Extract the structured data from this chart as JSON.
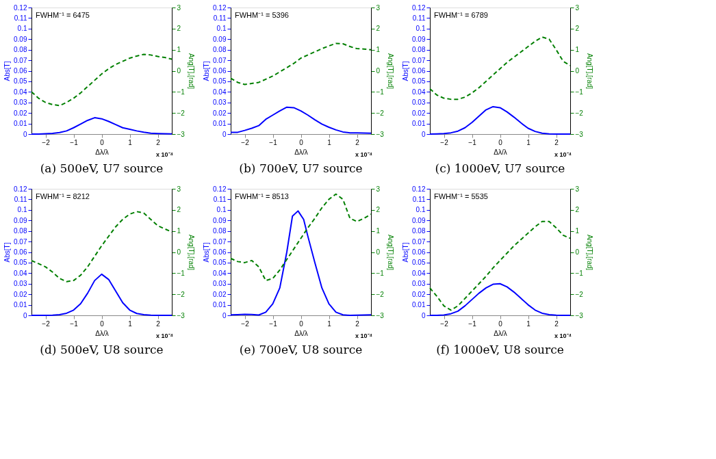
{
  "chart_data": [
    {
      "type": "line",
      "title": "(a)  500eV, U7 source",
      "xlabel": "Δλ/λ",
      "ylabel": "Abs[T]",
      "y2label": "Ang[T],[rad]",
      "annotations": [
        "FWHM⁻¹ = 6475",
        "x 10⁻⁴"
      ],
      "xlim": [
        -2.5,
        2.5
      ],
      "xticks": [
        -2,
        -1,
        0,
        1,
        2
      ],
      "ylim": [
        0,
        0.12
      ],
      "yticks": [
        0,
        0.01,
        0.02,
        0.03,
        0.04,
        0.05,
        0.06,
        0.07,
        0.08,
        0.09,
        0.1,
        0.11,
        0.12
      ],
      "y2lim": [
        -3,
        3
      ],
      "y2ticks": [
        -3,
        -2,
        -1,
        0,
        1,
        2,
        3
      ],
      "grid": false,
      "x": [
        -2.5,
        -2.25,
        -2,
        -1.75,
        -1.5,
        -1.25,
        -1,
        -0.75,
        -0.5,
        -0.25,
        0,
        0.25,
        0.5,
        0.75,
        1,
        1.25,
        1.5,
        1.75,
        2,
        2.25,
        2.5
      ],
      "series": [
        {
          "color": "#0000ff",
          "line_style": "solid",
          "values": [
            0,
            0,
            0.0003,
            0.0007,
            0.0015,
            0.003,
            0.006,
            0.0095,
            0.013,
            0.0155,
            0.0145,
            0.012,
            0.009,
            0.006,
            0.0045,
            0.003,
            0.0018,
            0.0008,
            0.0005,
            0.0003,
            0.0001
          ]
        },
        {
          "color": "#007f00",
          "line_style": "dashed",
          "axis": "y2",
          "values": [
            -1.0,
            -1.3,
            -1.5,
            -1.6,
            -1.65,
            -1.5,
            -1.3,
            -1.05,
            -0.75,
            -0.45,
            -0.15,
            0.1,
            0.3,
            0.45,
            0.6,
            0.7,
            0.78,
            0.75,
            0.68,
            0.63,
            0.55
          ]
        }
      ]
    },
    {
      "type": "line",
      "title": "(b)  700eV, U7 source",
      "xlabel": "Δλ/λ",
      "ylabel": "Abs[T]",
      "y2label": "Ang[T],[rad]",
      "annotations": [
        "FWHM⁻¹ = 5396",
        "x 10⁻⁴"
      ],
      "xlim": [
        -2.5,
        2.5
      ],
      "xticks": [
        -2,
        -1,
        0,
        1,
        2
      ],
      "ylim": [
        0,
        0.12
      ],
      "yticks": [
        0,
        0.01,
        0.02,
        0.03,
        0.04,
        0.05,
        0.06,
        0.07,
        0.08,
        0.09,
        0.1,
        0.11,
        0.12
      ],
      "y2lim": [
        -3,
        3
      ],
      "y2ticks": [
        -3,
        -2,
        -1,
        0,
        1,
        2,
        3
      ],
      "grid": false,
      "x": [
        -2.5,
        -2.25,
        -2,
        -1.75,
        -1.5,
        -1.25,
        -1,
        -0.75,
        -0.5,
        -0.25,
        0,
        0.25,
        0.5,
        0.75,
        1,
        1.25,
        1.5,
        1.75,
        2,
        2.25,
        2.5
      ],
      "series": [
        {
          "color": "#0000ff",
          "line_style": "solid",
          "values": [
            0.0017,
            0.0017,
            0.0035,
            0.0055,
            0.008,
            0.014,
            0.018,
            0.022,
            0.0255,
            0.025,
            0.022,
            0.018,
            0.0135,
            0.0095,
            0.0065,
            0.004,
            0.002,
            0.0012,
            0.0012,
            0.001,
            0.0008
          ]
        },
        {
          "color": "#007f00",
          "line_style": "dashed",
          "axis": "y2",
          "values": [
            -0.35,
            -0.55,
            -0.65,
            -0.6,
            -0.55,
            -0.4,
            -0.25,
            -0.05,
            0.15,
            0.35,
            0.6,
            0.75,
            0.9,
            1.05,
            1.18,
            1.3,
            1.28,
            1.15,
            1.05,
            1.03,
            1.0
          ]
        }
      ]
    },
    {
      "type": "line",
      "title": "(c)  1000eV, U7 source",
      "xlabel": "Δλ/λ",
      "ylabel": "Abs[T]",
      "y2label": "Ang[T],[rad]",
      "annotations": [
        "FWHM⁻¹ = 6789",
        "x 10⁻⁴"
      ],
      "xlim": [
        -2.5,
        2.5
      ],
      "xticks": [
        -2,
        -1,
        0,
        1,
        2
      ],
      "ylim": [
        0,
        0.12
      ],
      "yticks": [
        0,
        0.01,
        0.02,
        0.03,
        0.04,
        0.05,
        0.06,
        0.07,
        0.08,
        0.09,
        0.1,
        0.11,
        0.12
      ],
      "y2lim": [
        -3,
        3
      ],
      "y2ticks": [
        -3,
        -2,
        -1,
        0,
        1,
        2,
        3
      ],
      "grid": false,
      "x": [
        -2.5,
        -2.25,
        -2,
        -1.75,
        -1.5,
        -1.25,
        -1,
        -0.75,
        -0.5,
        -0.25,
        0,
        0.25,
        0.5,
        0.75,
        1,
        1.25,
        1.5,
        1.75,
        2,
        2.25,
        2.5
      ],
      "series": [
        {
          "color": "#0000ff",
          "line_style": "solid",
          "values": [
            0,
            0.0002,
            0.0005,
            0.0012,
            0.0028,
            0.006,
            0.011,
            0.017,
            0.023,
            0.026,
            0.025,
            0.021,
            0.016,
            0.0105,
            0.0055,
            0.0025,
            0.0008,
            0.0002,
            0,
            0,
            0
          ]
        },
        {
          "color": "#007f00",
          "line_style": "dashed",
          "axis": "y2",
          "values": [
            -0.85,
            -1.15,
            -1.3,
            -1.35,
            -1.35,
            -1.25,
            -1.05,
            -0.8,
            -0.5,
            -0.2,
            0.1,
            0.4,
            0.65,
            0.9,
            1.15,
            1.4,
            1.6,
            1.5,
            1.0,
            0.45,
            0.25
          ]
        }
      ]
    },
    {
      "type": "line",
      "title": "(d)  500eV, U8 source",
      "xlabel": "Δλ/λ",
      "ylabel": "Abs[T]",
      "y2label": "Ang[T],[rad]",
      "annotations": [
        "FWHM⁻¹ = 8212",
        "x 10⁻⁴"
      ],
      "xlim": [
        -2.5,
        2.5
      ],
      "xticks": [
        -2,
        -1,
        0,
        1,
        2
      ],
      "ylim": [
        0,
        0.12
      ],
      "yticks": [
        0,
        0.01,
        0.02,
        0.03,
        0.04,
        0.05,
        0.06,
        0.07,
        0.08,
        0.09,
        0.1,
        0.11,
        0.12
      ],
      "y2lim": [
        -3,
        3
      ],
      "y2ticks": [
        -3,
        -2,
        -1,
        0,
        1,
        2,
        3
      ],
      "grid": false,
      "x": [
        -2.5,
        -2.25,
        -2,
        -1.75,
        -1.5,
        -1.25,
        -1,
        -0.75,
        -0.5,
        -0.25,
        0,
        0.25,
        0.5,
        0.75,
        1,
        1.25,
        1.5,
        1.75,
        2,
        2.25,
        2.5
      ],
      "series": [
        {
          "color": "#0000ff",
          "line_style": "solid",
          "values": [
            0,
            0,
            0,
            0.0002,
            0.0006,
            0.002,
            0.005,
            0.011,
            0.021,
            0.033,
            0.039,
            0.034,
            0.023,
            0.012,
            0.005,
            0.0018,
            0.0006,
            0.0002,
            0,
            0,
            0
          ]
        },
        {
          "color": "#007f00",
          "line_style": "dashed",
          "axis": "y2",
          "values": [
            -0.4,
            -0.55,
            -0.7,
            -0.95,
            -1.25,
            -1.4,
            -1.35,
            -1.1,
            -0.7,
            -0.2,
            0.3,
            0.75,
            1.2,
            1.55,
            1.8,
            1.92,
            1.85,
            1.55,
            1.25,
            1.1,
            0.95
          ]
        }
      ]
    },
    {
      "type": "line",
      "title": "(e)  700eV, U8 source",
      "xlabel": "Δλ/λ",
      "ylabel": "Abs[T]",
      "y2label": "Ang[T],[rad]",
      "annotations": [
        "FWHM⁻¹ = 8513",
        "x 10⁻⁴"
      ],
      "xlim": [
        -2.5,
        2.5
      ],
      "xticks": [
        -2,
        -1,
        0,
        1,
        2
      ],
      "ylim": [
        0,
        0.12
      ],
      "yticks": [
        0,
        0.01,
        0.02,
        0.03,
        0.04,
        0.05,
        0.06,
        0.07,
        0.08,
        0.09,
        0.1,
        0.11,
        0.12
      ],
      "y2lim": [
        -3,
        3
      ],
      "y2ticks": [
        -3,
        -2,
        -1,
        0,
        1,
        2,
        3
      ],
      "grid": false,
      "x": [
        -2.5,
        -2.25,
        -2,
        -1.75,
        -1.5,
        -1.25,
        -1,
        -0.75,
        -0.5,
        -0.3,
        -0.1,
        0.1,
        0.25,
        0.5,
        0.75,
        1,
        1.25,
        1.5,
        1.75,
        2,
        2.25,
        2.5
      ],
      "series": [
        {
          "color": "#0000ff",
          "line_style": "solid",
          "values": [
            0.0005,
            0.0007,
            0.001,
            0.0008,
            0.0003,
            0.003,
            0.011,
            0.026,
            0.06,
            0.094,
            0.099,
            0.091,
            0.075,
            0.05,
            0.026,
            0.011,
            0.003,
            0.0005,
            0,
            0.0002,
            0.0003,
            0.0005
          ]
        },
        {
          "color": "#007f00",
          "line_style": "dashed",
          "axis": "y2",
          "values": [
            -0.3,
            -0.45,
            -0.5,
            -0.4,
            -0.7,
            -1.35,
            -1.25,
            -0.85,
            -0.35,
            0.05,
            0.45,
            0.85,
            1.15,
            1.6,
            2.1,
            2.5,
            2.75,
            2.5,
            1.6,
            1.45,
            1.6,
            1.8
          ]
        }
      ]
    },
    {
      "type": "line",
      "title": "(f)  1000eV, U8 source",
      "xlabel": "Δλ/λ",
      "ylabel": "Abs[T]",
      "y2label": "Ang[T],[rad]",
      "annotations": [
        "FWHM⁻¹ = 5535",
        "x 10⁻⁴"
      ],
      "xlim": [
        -2.5,
        2.5
      ],
      "xticks": [
        -2,
        -1,
        0,
        1,
        2
      ],
      "ylim": [
        0,
        0.12
      ],
      "yticks": [
        0,
        0.01,
        0.02,
        0.03,
        0.04,
        0.05,
        0.06,
        0.07,
        0.08,
        0.09,
        0.1,
        0.11,
        0.12
      ],
      "y2lim": [
        -3,
        3
      ],
      "y2ticks": [
        -3,
        -2,
        -1,
        0,
        1,
        2,
        3
      ],
      "grid": false,
      "x": [
        -2.5,
        -2.25,
        -2,
        -1.75,
        -1.5,
        -1.25,
        -1,
        -0.75,
        -0.5,
        -0.25,
        0,
        0.25,
        0.5,
        0.75,
        1,
        1.25,
        1.5,
        1.75,
        2,
        2.25,
        2.5
      ],
      "series": [
        {
          "color": "#0000ff",
          "line_style": "solid",
          "values": [
            0,
            0,
            0.0003,
            0.0015,
            0.004,
            0.009,
            0.015,
            0.021,
            0.026,
            0.0295,
            0.03,
            0.027,
            0.022,
            0.016,
            0.01,
            0.005,
            0.002,
            0.0006,
            0.0001,
            0,
            0
          ]
        },
        {
          "color": "#007f00",
          "line_style": "dashed",
          "axis": "y2",
          "values": [
            -1.7,
            -2.1,
            -2.55,
            -2.75,
            -2.55,
            -2.2,
            -1.85,
            -1.5,
            -1.15,
            -0.75,
            -0.4,
            -0.05,
            0.3,
            0.6,
            0.9,
            1.2,
            1.45,
            1.45,
            1.15,
            0.8,
            0.65
          ]
        }
      ]
    }
  ]
}
